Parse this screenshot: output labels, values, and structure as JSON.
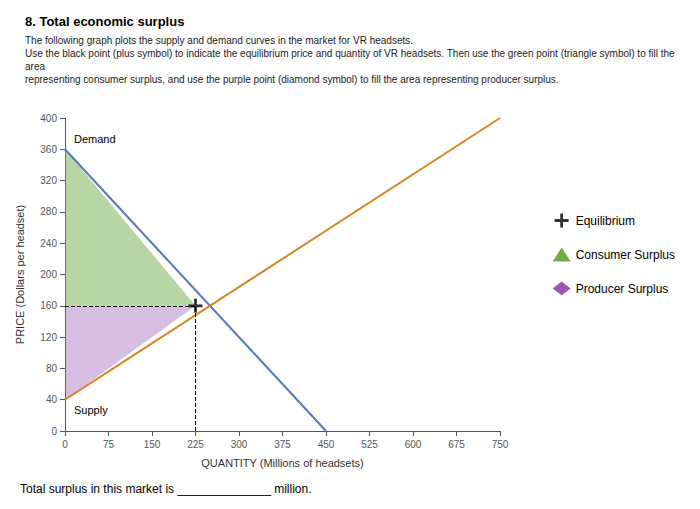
{
  "chart_data": {
    "type": "line",
    "title": "8. Total economic surplus",
    "subtitle": [
      "The following graph plots the supply and demand curves in the market for VR headsets.",
      "Use the black point (plus symbol) to indicate the equilibrium price and quantity of VR headsets. Then use the green point (triangle symbol) to fill the area",
      "representing consumer surplus, and use the purple point (diamond symbol) to fill the area representing producer surplus."
    ],
    "xlabel": "QUANTITY (Millions of headsets)",
    "ylabel": "PRICE (Dollars per headset)",
    "xlim": [
      0,
      750
    ],
    "ylim": [
      0,
      400
    ],
    "xticks": [
      0,
      75,
      150,
      225,
      300,
      375,
      450,
      525,
      600,
      675,
      750
    ],
    "yticks": [
      0,
      40,
      80,
      120,
      160,
      200,
      240,
      280,
      320,
      360,
      400
    ],
    "grid": false,
    "legend": "right",
    "series": [
      {
        "name": "Demand",
        "type": "line",
        "color": "#5577BB",
        "x": [
          0,
          450
        ],
        "values": [
          360,
          0
        ]
      },
      {
        "name": "Supply",
        "type": "line",
        "color": "#D4882A",
        "x": [
          0,
          750
        ],
        "values": [
          40,
          400
        ]
      },
      {
        "name": "Equilibrium",
        "type": "scatter",
        "marker": "plus",
        "line_style": "dashed",
        "color": "#000000",
        "x": [
          225
        ],
        "values": [
          160
        ]
      },
      {
        "name": "Consumer Surplus",
        "type": "area",
        "marker": "triangle",
        "color": "#70AD47",
        "x": [
          0,
          0,
          225
        ],
        "values": [
          360,
          160,
          160
        ]
      },
      {
        "name": "Producer Surplus",
        "type": "area",
        "marker": "diamond",
        "color": "#9B59B6",
        "x": [
          0,
          0,
          225
        ],
        "values": [
          40,
          160,
          160
        ]
      }
    ],
    "annotations": [
      "Total surplus in this market is",
      "______________",
      "million."
    ]
  }
}
